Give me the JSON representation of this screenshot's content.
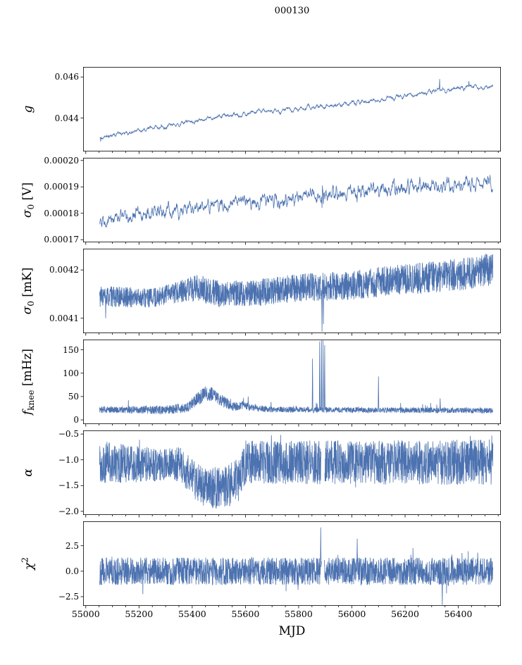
{
  "chart_data": {
    "type": "line",
    "title": "000130",
    "xlabel": "MJD",
    "line_color": "#4c72b0",
    "background": "#ffffff",
    "grid": false,
    "legend": "none",
    "xlim": [
      54990,
      56560
    ],
    "x_data_range": [
      55052,
      56530
    ],
    "samples": 2200,
    "x_minor_step": 50,
    "x_ticks": [
      {
        "v": 55000,
        "t": "55000"
      },
      {
        "v": 55200,
        "t": "55200"
      },
      {
        "v": 55400,
        "t": "55400"
      },
      {
        "v": 55600,
        "t": "55600"
      },
      {
        "v": 55800,
        "t": "55800"
      },
      {
        "v": 56000,
        "t": "56000"
      },
      {
        "v": 56200,
        "t": "56200"
      },
      {
        "v": 56400,
        "t": "56400"
      }
    ],
    "panels": [
      {
        "name": "g",
        "label": {
          "base": "g",
          "italic": true
        },
        "ylim": [
          0.04237,
          0.04649
        ],
        "yticks": [
          {
            "v": 0.044,
            "t": "0.044"
          },
          {
            "v": 0.046,
            "t": "0.046"
          }
        ],
        "trend": [
          [
            55052,
            0.043
          ],
          [
            55090,
            0.04315
          ],
          [
            55160,
            0.0433
          ],
          [
            55260,
            0.04355
          ],
          [
            55360,
            0.04378
          ],
          [
            55460,
            0.044
          ],
          [
            55560,
            0.04415
          ],
          [
            55660,
            0.0443
          ],
          [
            55760,
            0.0444
          ],
          [
            55860,
            0.04452
          ],
          [
            55960,
            0.04465
          ],
          [
            56060,
            0.0448
          ],
          [
            56160,
            0.045
          ],
          [
            56260,
            0.0452
          ],
          [
            56360,
            0.0454
          ],
          [
            56430,
            0.0455
          ],
          [
            56508,
            0.0455
          ]
        ],
        "noise": 0.0004,
        "smooth": 6,
        "spikes": [
          [
            55056,
            0.04285
          ],
          [
            56330,
            0.0459
          ],
          [
            56440,
            0.0458
          ]
        ],
        "seed": 11
      },
      {
        "name": "sigma0-V",
        "label": {
          "base": "σ",
          "sub": "0",
          "suffix": " [V]",
          "italic": true
        },
        "ylim": [
          0.000169,
          0.000201
        ],
        "yticks": [
          {
            "v": 0.00017,
            "t": "0.00017"
          },
          {
            "v": 0.00018,
            "t": "0.00018"
          },
          {
            "v": 0.00019,
            "t": "0.00019"
          },
          {
            "v": 0.0002,
            "t": "0.00020"
          }
        ],
        "trend": [
          [
            55052,
            0.000178
          ],
          [
            55200,
            0.0001795
          ],
          [
            55400,
            0.0001817
          ],
          [
            55560,
            0.0001838
          ],
          [
            55650,
            0.0001842
          ],
          [
            55800,
            0.0001862
          ],
          [
            55900,
            0.000187
          ],
          [
            56000,
            0.000188
          ],
          [
            56200,
            0.0001894
          ],
          [
            56400,
            0.0001908
          ],
          [
            56508,
            0.0001914
          ]
        ],
        "noise": 6e-06,
        "smooth": 3,
        "spikes": [
          [
            55888,
            0.000182
          ],
          [
            55893,
            0.0001835
          ]
        ],
        "seed": 22
      },
      {
        "name": "sigma0-mK",
        "label": {
          "base": "σ",
          "sub": "0",
          "suffix": " [mK]",
          "italic": true
        },
        "ylim": [
          0.004069,
          0.004244
        ],
        "yticks": [
          {
            "v": 0.0041,
            "t": "0.0041"
          },
          {
            "v": 0.0042,
            "t": "0.0042"
          }
        ],
        "trend": [
          [
            55052,
            0.004145
          ],
          [
            55250,
            0.004142
          ],
          [
            55420,
            0.004163
          ],
          [
            55500,
            0.00415
          ],
          [
            55650,
            0.004153
          ],
          [
            55800,
            0.004163
          ],
          [
            56000,
            0.004168
          ],
          [
            56150,
            0.004178
          ],
          [
            56300,
            0.004185
          ],
          [
            56450,
            0.004193
          ],
          [
            56508,
            0.0042
          ]
        ],
        "noise_trend": [
          [
            55052,
            2.2e-05
          ],
          [
            55300,
            2e-05
          ],
          [
            55420,
            2.8e-05
          ],
          [
            55600,
            2.7e-05
          ],
          [
            55800,
            2.9e-05
          ],
          [
            56000,
            3e-05
          ],
          [
            56200,
            3.2e-05
          ],
          [
            56508,
            3.4e-05
          ]
        ],
        "spikes": [
          [
            55075,
            0.0041
          ],
          [
            55888,
            0.004072
          ],
          [
            55893,
            0.004088
          ]
        ],
        "seed": 33
      },
      {
        "name": "fknee",
        "label": {
          "base": "f",
          "sub": "knee",
          "suffix": " [mHz]",
          "italic": true
        },
        "ylim": [
          -9,
          172
        ],
        "yticks": [
          {
            "v": 0,
            "t": "0"
          },
          {
            "v": 50,
            "t": "50"
          },
          {
            "v": 100,
            "t": "100"
          },
          {
            "v": 150,
            "t": "150"
          }
        ],
        "trend": [
          [
            55052,
            22
          ],
          [
            55300,
            21
          ],
          [
            55380,
            26
          ],
          [
            55420,
            45
          ],
          [
            55450,
            57
          ],
          [
            55480,
            54
          ],
          [
            55520,
            38
          ],
          [
            55560,
            28
          ],
          [
            55590,
            32
          ],
          [
            55620,
            26
          ],
          [
            55700,
            22
          ],
          [
            56508,
            20
          ]
        ],
        "noise_trend": [
          [
            55052,
            7
          ],
          [
            55380,
            10
          ],
          [
            55440,
            16
          ],
          [
            55500,
            14
          ],
          [
            55560,
            10
          ],
          [
            55620,
            8
          ],
          [
            55700,
            6
          ],
          [
            56508,
            6
          ]
        ],
        "burst": {
          "p": 0.012,
          "amp": 16,
          "sym": false
        },
        "spikes": [
          [
            55610,
            50
          ],
          [
            55852,
            131
          ],
          [
            55879,
            168
          ],
          [
            55886,
            170
          ],
          [
            55892,
            170
          ],
          [
            55898,
            160
          ],
          [
            56100,
            93
          ],
          [
            56332,
            46
          ]
        ],
        "seed": 44
      },
      {
        "name": "alpha",
        "label": {
          "base": "α",
          "italic": true
        },
        "ylim": [
          -2.07,
          -0.43
        ],
        "yticks": [
          {
            "v": -0.5,
            "t": "−0.5"
          },
          {
            "v": -1.0,
            "t": "−1.0"
          },
          {
            "v": -1.5,
            "t": "−1.5"
          },
          {
            "v": -2.0,
            "t": "−2.0"
          }
        ],
        "trend": [
          [
            55052,
            -1.05
          ],
          [
            55250,
            -1.1
          ],
          [
            55350,
            -1.08
          ],
          [
            55420,
            -1.45
          ],
          [
            55480,
            -1.55
          ],
          [
            55540,
            -1.5
          ],
          [
            55575,
            -1.3
          ],
          [
            55610,
            -1.05
          ],
          [
            56508,
            -1.05
          ]
        ],
        "noise_trend": [
          [
            55052,
            0.42
          ],
          [
            55200,
            0.36
          ],
          [
            55300,
            0.3
          ],
          [
            55400,
            0.38
          ],
          [
            55480,
            0.42
          ],
          [
            55560,
            0.4
          ],
          [
            55620,
            0.42
          ],
          [
            56508,
            0.44
          ]
        ],
        "burst": {
          "p": 0.02,
          "amp": 0.3,
          "sym": true
        },
        "gaps": [
          [
            55884,
            55898
          ]
        ],
        "seed": 55
      },
      {
        "name": "chi2",
        "label": {
          "base": "χ",
          "sup": "2",
          "italic": true
        },
        "ylim": [
          -3.4,
          4.9
        ],
        "yticks": [
          {
            "v": 2.5,
            "t": "2.5"
          },
          {
            "v": 0,
            "t": "0.0"
          },
          {
            "v": -2.5,
            "t": "−2.5"
          }
        ],
        "trend": [
          [
            55052,
            0
          ],
          [
            56508,
            0
          ]
        ],
        "noise": 1.35,
        "burst": {
          "p": 0.03,
          "amp": 1.5,
          "sym": true
        },
        "spikes": [
          [
            55883,
            4.3
          ],
          [
            56020,
            3.2
          ],
          [
            56340,
            -3.3
          ]
        ],
        "gaps": [
          [
            55886,
            55896
          ]
        ],
        "seed": 66
      }
    ]
  }
}
